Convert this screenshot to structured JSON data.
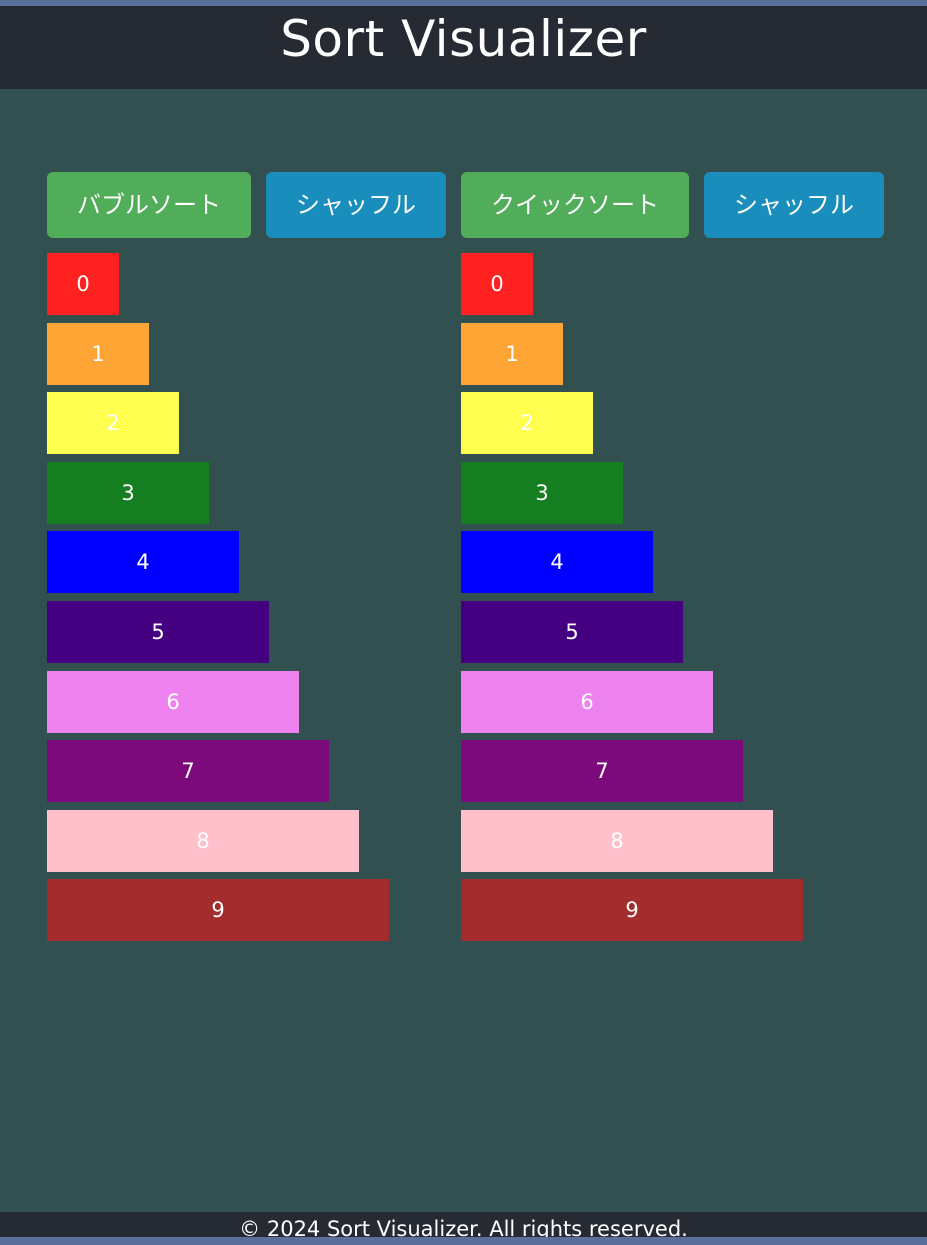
{
  "header": {
    "title": "Sort Visualizer"
  },
  "panels": [
    {
      "sort_button": "バブルソート",
      "shuffle_button": "シャッフル",
      "bars": [
        {
          "label": "0",
          "value": 0,
          "color": "#ff2020"
        },
        {
          "label": "1",
          "value": 1,
          "color": "#ffa535"
        },
        {
          "label": "2",
          "value": 2,
          "color": "#ffff4f"
        },
        {
          "label": "3",
          "value": 3,
          "color": "#147e20"
        },
        {
          "label": "4",
          "value": 4,
          "color": "#0000ff"
        },
        {
          "label": "5",
          "value": 5,
          "color": "#440080"
        },
        {
          "label": "6",
          "value": 6,
          "color": "#ee82ee"
        },
        {
          "label": "7",
          "value": 7,
          "color": "#7d0a7a"
        },
        {
          "label": "8",
          "value": 8,
          "color": "#ffc0cb"
        },
        {
          "label": "9",
          "value": 9,
          "color": "#a32c2c"
        }
      ]
    },
    {
      "sort_button": "クイックソート",
      "shuffle_button": "シャッフル",
      "bars": [
        {
          "label": "0",
          "value": 0,
          "color": "#ff2020"
        },
        {
          "label": "1",
          "value": 1,
          "color": "#ffa535"
        },
        {
          "label": "2",
          "value": 2,
          "color": "#ffff4f"
        },
        {
          "label": "3",
          "value": 3,
          "color": "#147e20"
        },
        {
          "label": "4",
          "value": 4,
          "color": "#0000ff"
        },
        {
          "label": "5",
          "value": 5,
          "color": "#440080"
        },
        {
          "label": "6",
          "value": 6,
          "color": "#ee82ee"
        },
        {
          "label": "7",
          "value": 7,
          "color": "#7d0a7a"
        },
        {
          "label": "8",
          "value": 8,
          "color": "#ffc0cb"
        },
        {
          "label": "9",
          "value": 9,
          "color": "#a32c2c"
        }
      ]
    }
  ],
  "colors": {
    "header_bg": "#262a33",
    "main_bg": "#335050",
    "sort_button_bg": "#52ad5a",
    "shuffle_button_bg": "#198ebc"
  },
  "footer": {
    "text": "© 2024 Sort Visualizer. All rights reserved."
  }
}
